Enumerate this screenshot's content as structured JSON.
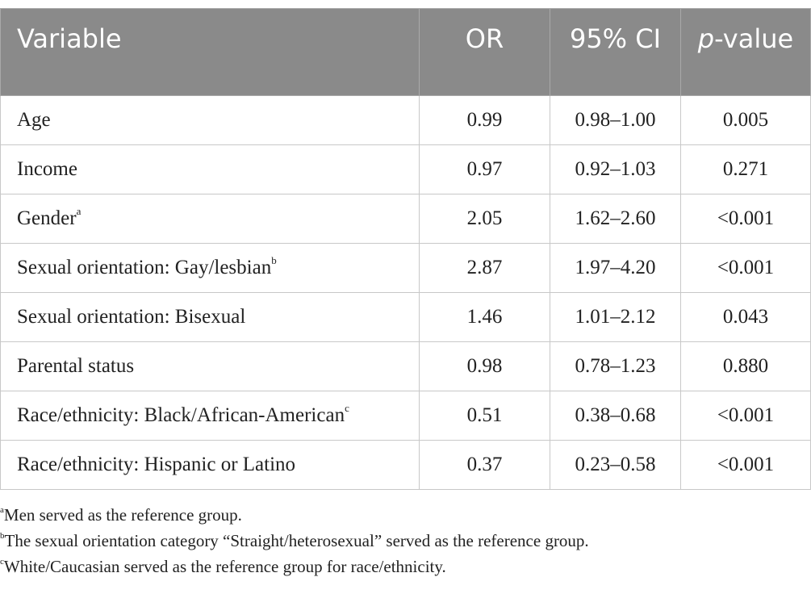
{
  "table": {
    "headers": {
      "variable": "Variable",
      "or": "OR",
      "ci": "95% CI",
      "p_italic": "p",
      "p_rest": "-value"
    },
    "rows": [
      {
        "variable": "Age",
        "sup": "",
        "or": "0.99",
        "ci": "0.98–1.00",
        "p": "0.005"
      },
      {
        "variable": "Income",
        "sup": "",
        "or": "0.97",
        "ci": "0.92–1.03",
        "p": "0.271"
      },
      {
        "variable": "Gender",
        "sup": "a",
        "or": "2.05",
        "ci": "1.62–2.60",
        "p": "<0.001"
      },
      {
        "variable": "Sexual orientation: Gay/lesbian",
        "sup": "b",
        "or": "2.87",
        "ci": "1.97–4.20",
        "p": "<0.001"
      },
      {
        "variable": "Sexual orientation: Bisexual",
        "sup": "",
        "or": "1.46",
        "ci": "1.01–2.12",
        "p": "0.043"
      },
      {
        "variable": "Parental status",
        "sup": "",
        "or": "0.98",
        "ci": "0.78–1.23",
        "p": "0.880"
      },
      {
        "variable": "Race/ethnicity: Black/African-American",
        "sup": "c",
        "or": "0.51",
        "ci": "0.38–0.68",
        "p": "<0.001"
      },
      {
        "variable": "Race/ethnicity: Hispanic or Latino",
        "sup": "",
        "or": "0.37",
        "ci": "0.23–0.58",
        "p": "<0.001"
      }
    ]
  },
  "footnotes": [
    {
      "mark": "a",
      "text": "Men served as the reference group."
    },
    {
      "mark": "b",
      "text": "The sexual orientation category “Straight/heterosexual” served as the reference group."
    },
    {
      "mark": "c",
      "text": "White/Caucasian served as the reference group for race/ethnicity."
    }
  ]
}
